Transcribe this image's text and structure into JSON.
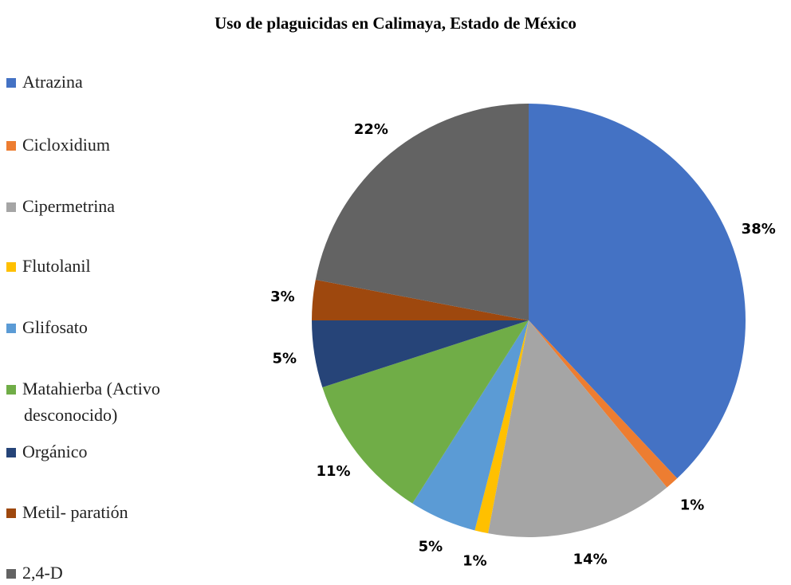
{
  "chart_data": {
    "type": "pie",
    "title": "Uso de plaguicidas en Calimaya, Estado de México",
    "categories": [
      "Atrazina",
      "Cicloxidium",
      "Cipermetrina",
      "Flutolanil",
      "Glifosato",
      "Matahierba (Activo desconocido)",
      "Orgánico",
      "Metil- paratión",
      "2,4-D"
    ],
    "values": [
      38,
      1,
      14,
      1,
      5,
      11,
      5,
      3,
      22
    ],
    "value_labels": [
      "38%",
      "1%",
      "14%",
      "1%",
      "5%",
      "11%",
      "5%",
      "3%",
      "22%"
    ],
    "colors": [
      "#4472c4",
      "#ed7d31",
      "#a5a5a5",
      "#ffc000",
      "#5b9bd5",
      "#70ad47",
      "#264478",
      "#9e480e",
      "#636363"
    ],
    "legend": "left"
  }
}
